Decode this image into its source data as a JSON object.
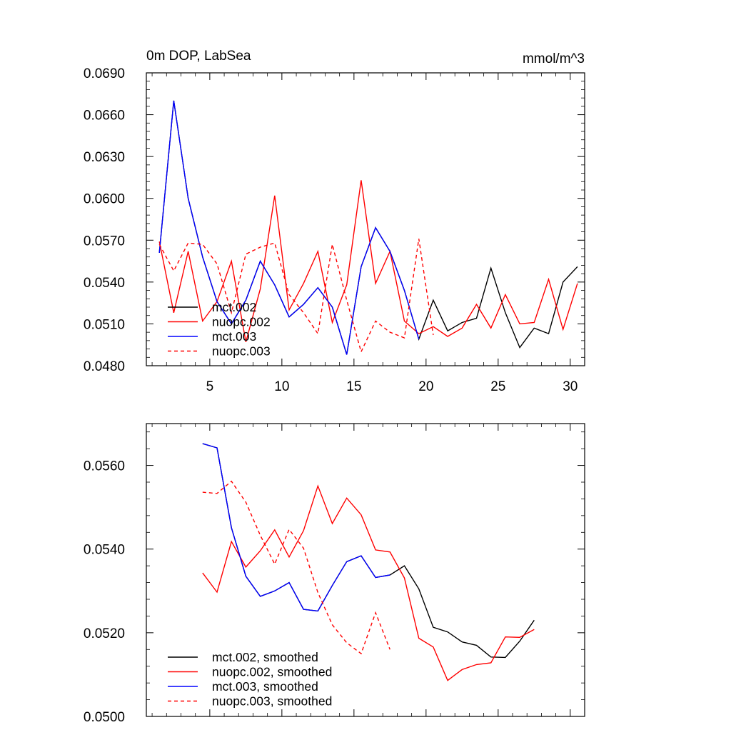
{
  "chart_data": [
    {
      "type": "line",
      "title": "0m DOP, LabSea",
      "units": "mmol/m^3",
      "xlabel": "",
      "ylabel": "",
      "xlim": [
        0.6,
        31.0
      ],
      "ylim": [
        0.048,
        0.069
      ],
      "x_ticks": [
        5,
        10,
        15,
        20,
        25,
        30
      ],
      "x_tick_labels": [
        "5",
        "10",
        "15",
        "20",
        "25",
        "30"
      ],
      "y_ticks": [
        0.048,
        0.051,
        0.054,
        0.057,
        0.06,
        0.063,
        0.066,
        0.069
      ],
      "y_tick_labels": [
        "0.0480",
        "0.0510",
        "0.0540",
        "0.0570",
        "0.0600",
        "0.0630",
        "0.0660",
        "0.0690"
      ],
      "legend": {
        "position": "lower-left",
        "entries": [
          "mct.002",
          "nuopc.002",
          "mct.003",
          "nuopc.003"
        ]
      },
      "series": [
        {
          "name": "mct.002",
          "color": "#000000",
          "dash": false,
          "x": [
            1.5,
            2.5,
            3.5,
            4.5,
            5.5,
            6.5,
            7.5,
            8.5,
            9.5,
            10.5,
            11.5,
            12.5,
            13.5,
            14.5,
            15.5,
            16.5,
            17.5,
            18.5,
            19.5,
            20.5,
            21.5,
            22.5,
            23.5,
            24.5,
            25.5,
            26.5,
            27.5,
            28.5,
            29.5,
            30.5
          ],
          "values": [
            0.0561,
            0.067,
            0.06,
            0.0558,
            0.0526,
            0.051,
            0.0527,
            0.0555,
            0.0538,
            0.0515,
            0.0524,
            0.0536,
            0.0522,
            0.0488,
            0.0551,
            0.0579,
            0.0562,
            0.0534,
            0.0499,
            0.0527,
            0.0505,
            0.0511,
            0.0514,
            0.055,
            0.0518,
            0.0493,
            0.0507,
            0.0503,
            0.054,
            0.0551
          ]
        },
        {
          "name": "nuopc.002",
          "color": "#ff0000",
          "dash": false,
          "x": [
            1.5,
            2.5,
            3.5,
            4.5,
            5.5,
            6.5,
            7.5,
            8.5,
            9.5,
            10.5,
            11.5,
            12.5,
            13.5,
            14.5,
            15.5,
            16.5,
            17.5,
            18.5,
            19.5,
            20.5,
            21.5,
            22.5,
            23.5,
            24.5,
            25.5,
            26.5,
            27.5,
            28.5,
            29.5,
            30.5
          ],
          "values": [
            0.0569,
            0.0518,
            0.0562,
            0.0512,
            0.0526,
            0.0555,
            0.0497,
            0.0535,
            0.0602,
            0.052,
            0.0539,
            0.0562,
            0.0511,
            0.0538,
            0.0613,
            0.0539,
            0.0562,
            0.0512,
            0.0503,
            0.0508,
            0.0501,
            0.0507,
            0.0524,
            0.0507,
            0.0531,
            0.051,
            0.0511,
            0.0542,
            0.0506,
            0.0539
          ]
        },
        {
          "name": "mct.003",
          "color": "#0000ff",
          "dash": false,
          "x": [
            1.5,
            2.5,
            3.5,
            4.5,
            5.5,
            6.5,
            7.5,
            8.5,
            9.5,
            10.5,
            11.5,
            12.5,
            13.5,
            14.5,
            15.5,
            16.5,
            17.5,
            18.5,
            19.5
          ],
          "values": [
            0.0561,
            0.067,
            0.06,
            0.0558,
            0.0526,
            0.051,
            0.0527,
            0.0555,
            0.0538,
            0.0515,
            0.0524,
            0.0536,
            0.0522,
            0.0488,
            0.0551,
            0.0579,
            0.0562,
            0.0534,
            0.0499
          ]
        },
        {
          "name": "nuopc.003",
          "color": "#ff0000",
          "dash": true,
          "x": [
            1.5,
            2.5,
            3.5,
            4.5,
            5.5,
            6.5,
            7.5,
            8.5,
            9.5,
            10.5,
            11.5,
            12.5,
            13.5,
            14.5,
            15.5,
            16.5,
            17.5,
            18.5,
            19.5,
            20.5
          ],
          "values": [
            0.0567,
            0.0548,
            0.0568,
            0.0567,
            0.0553,
            0.0518,
            0.056,
            0.0565,
            0.0568,
            0.0531,
            0.0518,
            0.0503,
            0.0567,
            0.0527,
            0.049,
            0.0512,
            0.0504,
            0.05,
            0.0571,
            0.0502
          ]
        }
      ]
    },
    {
      "type": "line",
      "title": "",
      "xlabel": "",
      "ylabel": "",
      "xlim": [
        0.6,
        31.0
      ],
      "ylim": [
        0.05,
        0.057
      ],
      "x_ticks": [
        5,
        10,
        15,
        20,
        25,
        30
      ],
      "x_tick_labels": [],
      "y_ticks": [
        0.05,
        0.052,
        0.054,
        0.056
      ],
      "y_tick_labels": [
        "0.0500",
        "0.0520",
        "0.0540",
        "0.0560"
      ],
      "legend": {
        "position": "lower-left",
        "entries": [
          "mct.002, smoothed",
          "nuopc.002, smoothed",
          "mct.003, smoothed",
          "nuopc.003, smoothed"
        ]
      },
      "series": [
        {
          "name": "mct.002, smoothed",
          "color": "#000000",
          "dash": false,
          "x": [
            4.5,
            5.5,
            6.5,
            7.5,
            8.5,
            9.5,
            10.5,
            11.5,
            12.5,
            13.5,
            14.5,
            15.5,
            16.5,
            17.5,
            18.5,
            19.5,
            20.5,
            21.5,
            22.5,
            23.5,
            24.5,
            25.5,
            26.5,
            27.5
          ],
          "values": [
            0.05652,
            0.05642,
            0.05451,
            0.05335,
            0.05287,
            0.053,
            0.0532,
            0.05256,
            0.05252,
            0.05313,
            0.0537,
            0.05384,
            0.05332,
            0.05338,
            0.0536,
            0.05305,
            0.05213,
            0.05202,
            0.05178,
            0.0517,
            0.05142,
            0.05141,
            0.0518,
            0.0523
          ]
        },
        {
          "name": "nuopc.002, smoothed",
          "color": "#ff0000",
          "dash": false,
          "x": [
            4.5,
            5.5,
            6.5,
            7.5,
            8.5,
            9.5,
            10.5,
            11.5,
            12.5,
            13.5,
            14.5,
            15.5,
            16.5,
            17.5,
            18.5,
            19.5,
            20.5,
            21.5,
            22.5,
            23.5,
            24.5,
            25.5,
            26.5,
            27.5
          ],
          "values": [
            0.05343,
            0.05297,
            0.05418,
            0.05357,
            0.05396,
            0.05446,
            0.05381,
            0.05444,
            0.05551,
            0.05461,
            0.05522,
            0.05482,
            0.05398,
            0.05393,
            0.05331,
            0.05187,
            0.05166,
            0.05086,
            0.05112,
            0.05124,
            0.05128,
            0.0519,
            0.05189,
            0.05208
          ]
        },
        {
          "name": "mct.003, smoothed",
          "color": "#0000ff",
          "dash": false,
          "x": [
            4.5,
            5.5,
            6.5,
            7.5,
            8.5,
            9.5,
            10.5,
            11.5,
            12.5,
            13.5,
            14.5,
            15.5,
            16.5,
            17.5
          ],
          "values": [
            0.05652,
            0.05642,
            0.05451,
            0.05335,
            0.05287,
            0.053,
            0.0532,
            0.05256,
            0.05252,
            0.05313,
            0.0537,
            0.05384,
            0.05332,
            0.05338
          ]
        },
        {
          "name": "nuopc.003, smoothed",
          "color": "#ff0000",
          "dash": true,
          "x": [
            4.5,
            5.5,
            6.5,
            7.5,
            8.5,
            9.5,
            10.5,
            11.5,
            12.5,
            13.5,
            14.5,
            15.5,
            16.5,
            17.5
          ],
          "values": [
            0.05536,
            0.05533,
            0.05562,
            0.05512,
            0.05433,
            0.05364,
            0.05447,
            0.05402,
            0.05296,
            0.05219,
            0.05176,
            0.0515,
            0.05248,
            0.0516
          ]
        }
      ]
    }
  ]
}
